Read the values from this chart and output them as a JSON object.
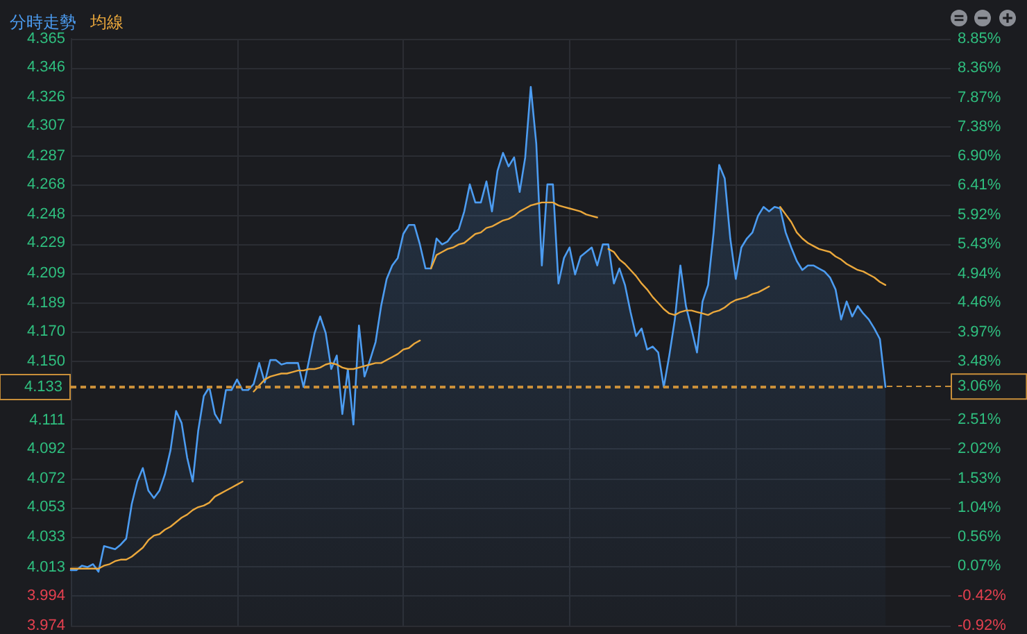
{
  "chart_data": {
    "type": "area",
    "categories": [
      null,
      null,
      null,
      null,
      null,
      null,
      null,
      null,
      null,
      null,
      null,
      null,
      null,
      null,
      null,
      null,
      null,
      null,
      null,
      null,
      null,
      null,
      null,
      null,
      null,
      null,
      null,
      null,
      null,
      null,
      null,
      null,
      null,
      null,
      null,
      null,
      null,
      null,
      null,
      null,
      null,
      null,
      null,
      null,
      null,
      null,
      null,
      null,
      null,
      null,
      null,
      null,
      null,
      null,
      null,
      null,
      null,
      null,
      null,
      null,
      null,
      null,
      null,
      null,
      null,
      null,
      null,
      null,
      null,
      null,
      null,
      null,
      null,
      null,
      null,
      null,
      null,
      null,
      null,
      null,
      null,
      null,
      null,
      null,
      null,
      null,
      null,
      null,
      null,
      null,
      null,
      null,
      null,
      null,
      null,
      null,
      null,
      null,
      null,
      null,
      null,
      null,
      null,
      null,
      null,
      null,
      null,
      null,
      null,
      null,
      null,
      null,
      null,
      null,
      null,
      null,
      null,
      null,
      null,
      null,
      null,
      null,
      null,
      null,
      null,
      null,
      null,
      null,
      null,
      null,
      null,
      null,
      null,
      null,
      null,
      null,
      null,
      null,
      null,
      null,
      null,
      null,
      null,
      null,
      null,
      null,
      null,
      null
    ],
    "series": [
      {
        "name": "分時走勢",
        "color": "#4c9cf1",
        "values": [
          4.011,
          4.011,
          4.014,
          4.013,
          4.015,
          4.01,
          4.027,
          4.026,
          4.025,
          4.028,
          4.032,
          4.055,
          4.07,
          4.079,
          4.064,
          4.059,
          4.064,
          4.075,
          4.091,
          4.117,
          4.109,
          4.086,
          4.07,
          4.104,
          4.127,
          4.133,
          4.115,
          4.109,
          4.131,
          4.131,
          4.138,
          4.131,
          4.131,
          4.135,
          4.149,
          4.136,
          4.151,
          4.151,
          4.148,
          4.149,
          4.149,
          4.149,
          4.133,
          4.151,
          4.169,
          4.18,
          4.169,
          4.145,
          4.154,
          4.115,
          4.145,
          4.108,
          4.174,
          4.14,
          4.151,
          4.163,
          4.187,
          4.205,
          4.214,
          4.219,
          4.235,
          4.241,
          4.241,
          4.228,
          4.212,
          4.212,
          4.232,
          4.228,
          4.23,
          4.235,
          4.238,
          4.25,
          4.268,
          4.256,
          4.256,
          4.27,
          4.25,
          4.277,
          4.289,
          4.28,
          4.286,
          4.263,
          4.286,
          4.333,
          4.295,
          4.214,
          4.268,
          4.268,
          4.202,
          4.219,
          4.226,
          4.208,
          4.22,
          4.223,
          4.226,
          4.214,
          4.228,
          4.228,
          4.202,
          4.212,
          4.201,
          4.183,
          4.167,
          4.172,
          4.158,
          4.16,
          4.156,
          4.133,
          4.154,
          4.178,
          4.214,
          4.187,
          4.172,
          4.156,
          4.19,
          4.201,
          4.236,
          4.281,
          4.272,
          4.232,
          4.205,
          4.226,
          4.232,
          4.236,
          4.247,
          4.253,
          4.25,
          4.253,
          4.252,
          4.236,
          4.226,
          4.217,
          4.211,
          4.214,
          4.214,
          4.212,
          4.21,
          4.206,
          4.198,
          4.178,
          4.19,
          4.18,
          4.187,
          4.182,
          4.178,
          4.172,
          4.165,
          4.133
        ]
      },
      {
        "name": "均線",
        "type": "line",
        "color": "#eba83c",
        "values": [
          4.012,
          4.012,
          4.012,
          4.012,
          4.012,
          4.012,
          4.014,
          4.015,
          4.017,
          4.018,
          4.018,
          4.02,
          4.023,
          4.026,
          4.031,
          4.034,
          4.035,
          4.038,
          4.04,
          4.043,
          4.046,
          4.048,
          4.051,
          4.053,
          4.054,
          4.056,
          4.06,
          4.062,
          4.064,
          4.066,
          4.068,
          4.07,
          null,
          4.13,
          4.134,
          4.138,
          4.14,
          4.141,
          4.142,
          4.142,
          4.143,
          4.144,
          4.144,
          4.145,
          4.145,
          4.146,
          4.148,
          4.149,
          4.148,
          4.146,
          4.145,
          4.145,
          4.146,
          4.147,
          4.148,
          4.149,
          4.149,
          4.151,
          4.153,
          4.155,
          4.158,
          4.159,
          4.162,
          4.164,
          null,
          4.212,
          4.221,
          4.223,
          4.225,
          4.226,
          4.228,
          4.229,
          4.232,
          4.235,
          4.236,
          4.239,
          4.24,
          4.242,
          4.244,
          4.245,
          4.247,
          4.25,
          4.252,
          4.254,
          4.255,
          4.256,
          4.256,
          4.256,
          4.254,
          4.253,
          4.252,
          4.251,
          4.25,
          4.248,
          4.247,
          4.246,
          null,
          4.225,
          4.223,
          4.218,
          4.215,
          4.211,
          4.207,
          4.202,
          4.198,
          4.193,
          4.189,
          4.185,
          4.182,
          4.181,
          4.183,
          4.184,
          4.184,
          4.183,
          4.182,
          4.181,
          4.183,
          4.184,
          4.186,
          4.189,
          4.191,
          4.192,
          4.193,
          4.195,
          4.196,
          4.198,
          4.2,
          null,
          4.253,
          4.248,
          4.243,
          4.236,
          4.232,
          4.229,
          4.227,
          4.225,
          4.224,
          4.223,
          4.22,
          4.218,
          4.215,
          4.213,
          4.211,
          4.21,
          4.208,
          4.206,
          4.203,
          4.201
        ]
      }
    ],
    "ylim": [
      3.974,
      4.365
    ],
    "yticks": [
      3.974,
      3.994,
      4.013,
      4.033,
      4.053,
      4.072,
      4.092,
      4.111,
      {
        "value": 4.15,
        "label": "4.150"
      },
      {
        "value": 4.17,
        "label": "4.170"
      },
      4.189,
      4.209,
      4.229,
      4.248,
      4.268,
      4.287,
      4.307,
      4.326,
      4.346,
      4.365
    ],
    "y2lim": [
      -0.92,
      8.85
    ],
    "y2ticks": [
      {
        "value": -0.92,
        "label": "-0.92%"
      },
      {
        "value": -0.42,
        "label": "-0.42%"
      },
      {
        "value": 0.07,
        "label": "0.07%"
      },
      {
        "value": 0.56,
        "label": "0.56%"
      },
      {
        "value": 1.04,
        "label": "1.04%"
      },
      {
        "value": 1.53,
        "label": "1.53%"
      },
      {
        "value": 2.02,
        "label": "2.02%"
      },
      {
        "value": 2.51,
        "label": "2.51%"
      },
      {
        "value": 3.48,
        "label": "3.48%"
      },
      {
        "value": 3.97,
        "label": "3.97%"
      },
      {
        "value": 4.46,
        "label": "4.46%"
      },
      {
        "value": 4.94,
        "label": "4.94%"
      },
      {
        "value": 5.43,
        "label": "5.43%"
      },
      {
        "value": 5.92,
        "label": "5.92%"
      },
      {
        "value": 6.41,
        "label": "6.41%"
      },
      {
        "value": 6.9,
        "label": "6.90%"
      },
      {
        "value": 7.38,
        "label": "7.38%"
      },
      {
        "value": 7.87,
        "label": "7.87%"
      },
      {
        "value": 8.36,
        "label": "8.36%"
      },
      {
        "value": 8.85,
        "label": "8.85%"
      }
    ],
    "ref_lines": [
      {
        "axis": "y",
        "value": 4.133,
        "label": "4.133",
        "color": "#c98f3a",
        "line_style": "dashed"
      },
      {
        "axis": "y2",
        "value": 3.06,
        "label": "3.06%",
        "color": "#c98f3a",
        "line_style": "dashed"
      }
    ],
    "grid": true,
    "legend": "top left"
  }
}
